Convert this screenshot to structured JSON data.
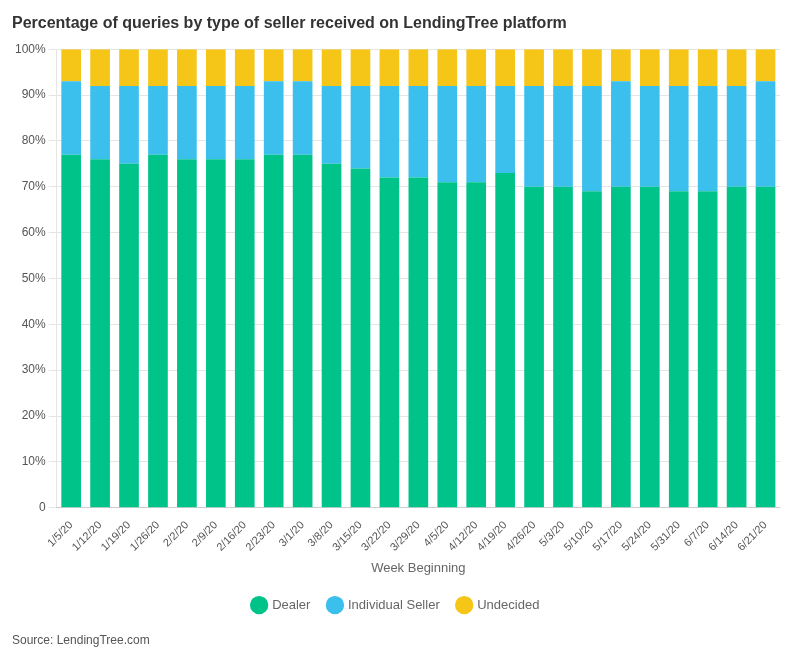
{
  "chart_data": {
    "type": "bar",
    "stacked": true,
    "title": "Percentage of queries by type of seller received on LendingTree platform",
    "xlabel": "Week Beginning",
    "annotations": [
      "Source: LendingTree.com"
    ],
    "categories": [
      "1/5/20",
      "1/12/20",
      "1/19/20",
      "1/26/20",
      "2/2/20",
      "2/9/20",
      "2/16/20",
      "2/23/20",
      "3/1/20",
      "3/8/20",
      "3/15/20",
      "3/22/20",
      "3/29/20",
      "4/5/20",
      "4/12/20",
      "4/19/20",
      "4/26/20",
      "5/3/20",
      "5/10/20",
      "5/17/20",
      "5/24/20",
      "5/31/20",
      "6/7/20",
      "6/14/20",
      "6/21/20"
    ],
    "series": [
      {
        "name": "Dealer",
        "color": "#00C389",
        "values": [
          77,
          76,
          75,
          77,
          76,
          76,
          76,
          77,
          77,
          75,
          74,
          72,
          72,
          71,
          71,
          73,
          70,
          70,
          69,
          70,
          70,
          69,
          69,
          70,
          70
        ]
      },
      {
        "name": "Individual Seller",
        "color": "#3BBFED",
        "values": [
          16,
          16,
          17,
          15,
          16,
          16,
          16,
          16,
          16,
          17,
          18,
          20,
          20,
          21,
          21,
          19,
          22,
          22,
          23,
          23,
          22,
          23,
          23,
          22,
          23
        ]
      },
      {
        "name": "Undecided",
        "color": "#F5C518",
        "values": [
          7,
          8,
          8,
          8,
          8,
          8,
          8,
          7,
          7,
          8,
          8,
          8,
          8,
          8,
          8,
          8,
          8,
          8,
          8,
          7,
          8,
          8,
          8,
          8,
          7
        ]
      }
    ],
    "ylim": [
      0,
      100
    ],
    "yticks": [
      0,
      {
        "value": 10,
        "label": "10%"
      },
      {
        "value": 20,
        "label": "20%"
      },
      {
        "value": 30,
        "label": "30%"
      },
      {
        "value": 40,
        "label": "40%"
      },
      {
        "value": 50,
        "label": "50%"
      },
      {
        "value": 60,
        "label": "60%"
      },
      {
        "value": 70,
        "label": "70%"
      },
      {
        "value": 80,
        "label": "80%"
      },
      {
        "value": 90,
        "label": "90%"
      },
      {
        "value": 100,
        "label": "100%"
      }
    ],
    "grid": true,
    "legend": "bottom"
  }
}
